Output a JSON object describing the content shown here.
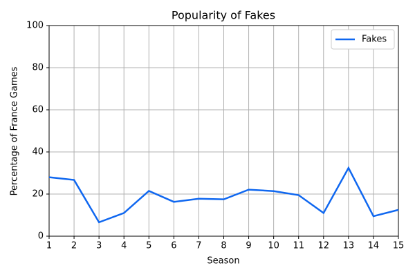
{
  "chart_data": {
    "type": "line",
    "title": "Popularity of Fakes",
    "xlabel": "Season",
    "ylabel": "Percentage of France Games",
    "x": [
      1,
      2,
      3,
      4,
      5,
      6,
      7,
      8,
      9,
      10,
      11,
      12,
      13,
      14,
      15
    ],
    "series": [
      {
        "name": "Fakes",
        "color": "#0f67f0",
        "values": [
          28,
          26.7,
          6.6,
          11,
          21.5,
          16.3,
          17.8,
          17.5,
          22.1,
          21.4,
          19.5,
          11,
          32.4,
          9.5,
          12.5
        ]
      }
    ],
    "xlim": [
      1,
      15
    ],
    "xticks": [
      1,
      2,
      3,
      4,
      5,
      6,
      7,
      8,
      9,
      10,
      11,
      12,
      13,
      14,
      15
    ],
    "ylim": [
      0,
      100
    ],
    "yticks": [
      0,
      20,
      40,
      60,
      80,
      100
    ],
    "grid": true,
    "legend": "upper right"
  }
}
